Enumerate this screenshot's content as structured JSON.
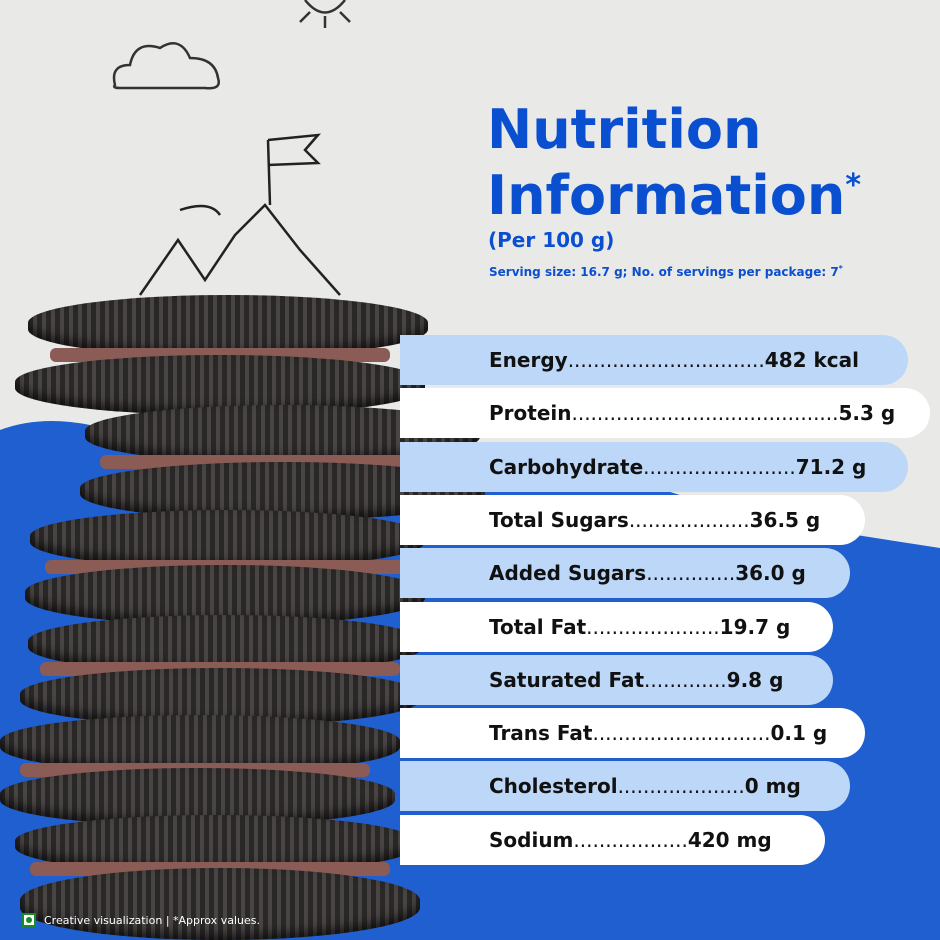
{
  "title": {
    "line1": "Nutrition",
    "line2": "Information",
    "asterisk": "*"
  },
  "per": "(Per 100 g)",
  "serving": "Serving size: 16.7 g; No. of servings per package: 7",
  "serving_mark": "*",
  "nutrients": [
    {
      "label": "Energy",
      "dots": "...............................",
      "value": "482 kcal"
    },
    {
      "label": "Protein",
      "dots": "..........................................",
      "value": "5.3 g"
    },
    {
      "label": "Carbohydrate",
      "dots": "........................",
      "value": "71.2 g"
    },
    {
      "label": "Total Sugars",
      "dots": "...................",
      "value": "36.5 g"
    },
    {
      "label": "Added Sugars",
      "dots": "..............",
      "value": "36.0 g"
    },
    {
      "label": "Total Fat",
      "dots": ".....................",
      "value": "19.7 g"
    },
    {
      "label": "Saturated Fat",
      "dots": ".............",
      "value": "9.8 g"
    },
    {
      "label": "Trans Fat",
      "dots": "............................",
      "value": "0.1 g"
    },
    {
      "label": "Cholesterol",
      "dots": "....................",
      "value": "0 mg"
    },
    {
      "label": "Sodium",
      "dots": "..................",
      "value": "420 mg"
    }
  ],
  "footer": "Creative visualization | *Approx values.",
  "colors": {
    "brand_blue": "#0b4fd1",
    "pill_blue": "#bcd7f7",
    "veg_mark": "#1a8a2a"
  }
}
